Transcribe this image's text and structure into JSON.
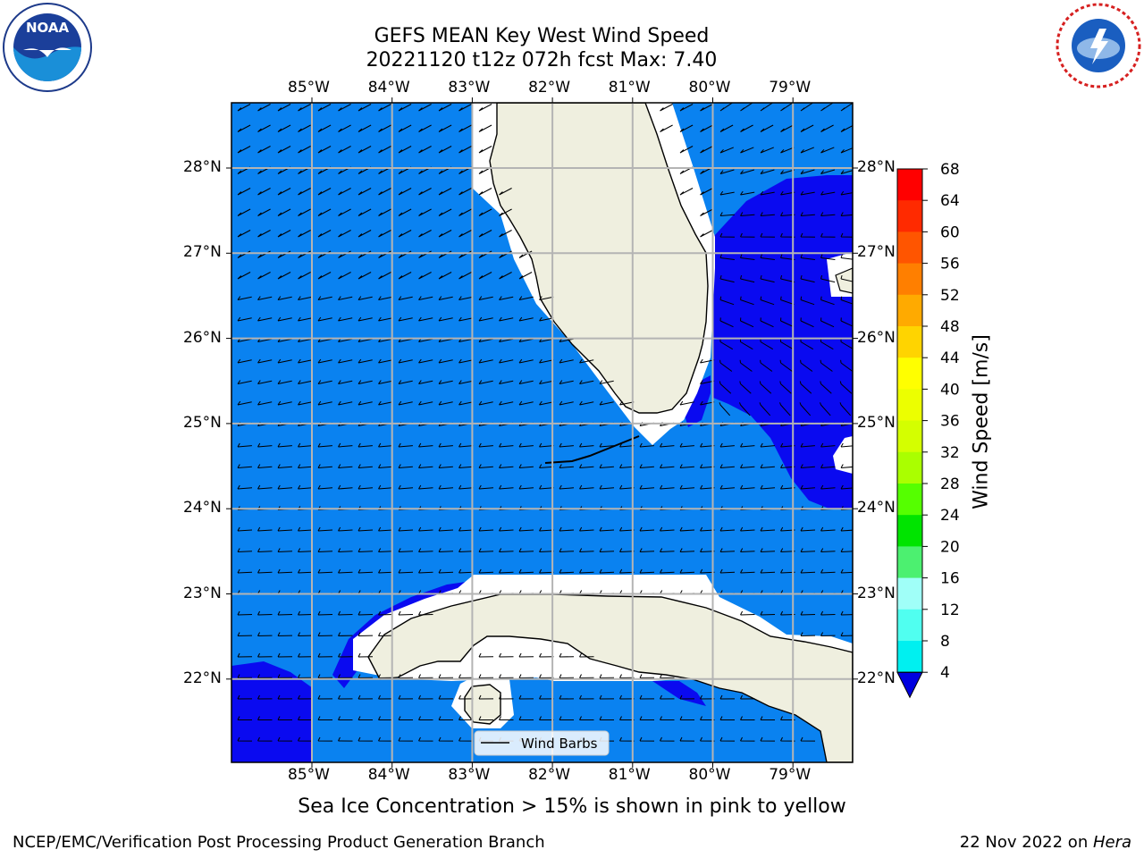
{
  "header": {
    "title_line1": "GEFS MEAN Key West Wind Speed",
    "title_line2": "20221120 t12z 072h fcst   Max: 7.40"
  },
  "logos": {
    "left": {
      "icon": "noaa-logo",
      "text": "NOAA"
    },
    "right": {
      "icon": "nws-logo",
      "text": "NATIONAL WEATHER SERVICE"
    }
  },
  "map": {
    "lon_labels": [
      "85°W",
      "84°W",
      "83°W",
      "82°W",
      "81°W",
      "80°W",
      "79°W"
    ],
    "lat_labels": [
      "28°N",
      "27°N",
      "26°N",
      "25°N",
      "24°N",
      "23°N",
      "22°N"
    ],
    "legend_label": "Wind Barbs",
    "colors": {
      "ocean_light": "#0a82f0",
      "ocean_dark": "#0a0af0",
      "land": "#efefdf",
      "gridline": "#b4b4b4"
    }
  },
  "colorbar": {
    "label": "Wind Speed [m/s]",
    "ticks": [
      "68",
      "64",
      "60",
      "56",
      "52",
      "48",
      "44",
      "40",
      "36",
      "32",
      "28",
      "24",
      "20",
      "16",
      "12",
      "8",
      "4"
    ],
    "colors": [
      "#ff0000",
      "#ff2a00",
      "#ff5500",
      "#ff7f00",
      "#ffaa00",
      "#ffd400",
      "#ffff00",
      "#ecff00",
      "#d4ff00",
      "#aaff00",
      "#55ff00",
      "#00e400",
      "#4cf070",
      "#a0fff8",
      "#50fff0",
      "#00f0f0",
      "#00c8ff",
      "#0a82f0"
    ],
    "under_color": "#0000e0"
  },
  "subtitle": "Sea Ice Concentration > 15% is shown in pink to yellow",
  "footer": {
    "left": "NCEP/EMC/Verification Post Processing Product Generation Branch",
    "date": "22 Nov 2022 on ",
    "machine": "Hera"
  }
}
